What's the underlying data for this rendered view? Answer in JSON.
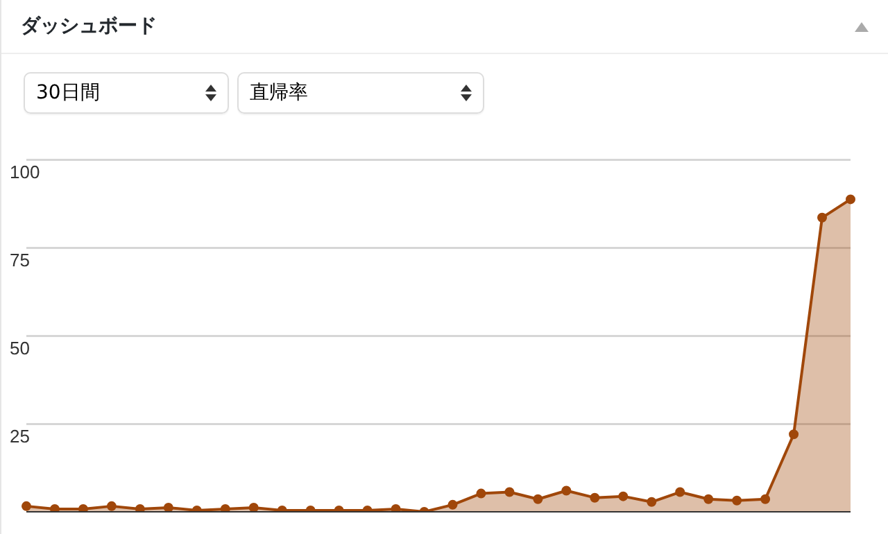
{
  "chart_data": {
    "type": "area",
    "title": "ダッシュボード",
    "annotations": [
      "30日間",
      "直帰率"
    ],
    "categories": [
      null,
      null,
      null,
      null,
      null,
      null,
      null,
      null,
      null,
      null,
      null,
      null,
      null,
      null,
      null,
      null,
      null,
      null,
      null,
      null,
      null,
      null,
      null,
      null,
      null,
      null,
      null,
      null,
      null,
      null
    ],
    "series": [
      {
        "color": "#a0470a",
        "values": [
          1.6,
          0.8,
          0.8,
          1.6,
          0.8,
          1.2,
          0.4,
          0.8,
          1.2,
          0.4,
          0.4,
          0.4,
          0.4,
          0.8,
          0,
          2,
          5.2,
          5.6,
          3.6,
          6,
          4,
          4.4,
          2.8,
          5.6,
          3.6,
          3.2,
          3.6,
          22,
          83.5,
          88.7
        ]
      }
    ],
    "ylim": [
      0,
      100
    ],
    "yticks": [
      25,
      50,
      75,
      100
    ],
    "grid": "y",
    "legend": false,
    "marker": "circle",
    "line_style": "solid",
    "tick_labels": "y"
  }
}
